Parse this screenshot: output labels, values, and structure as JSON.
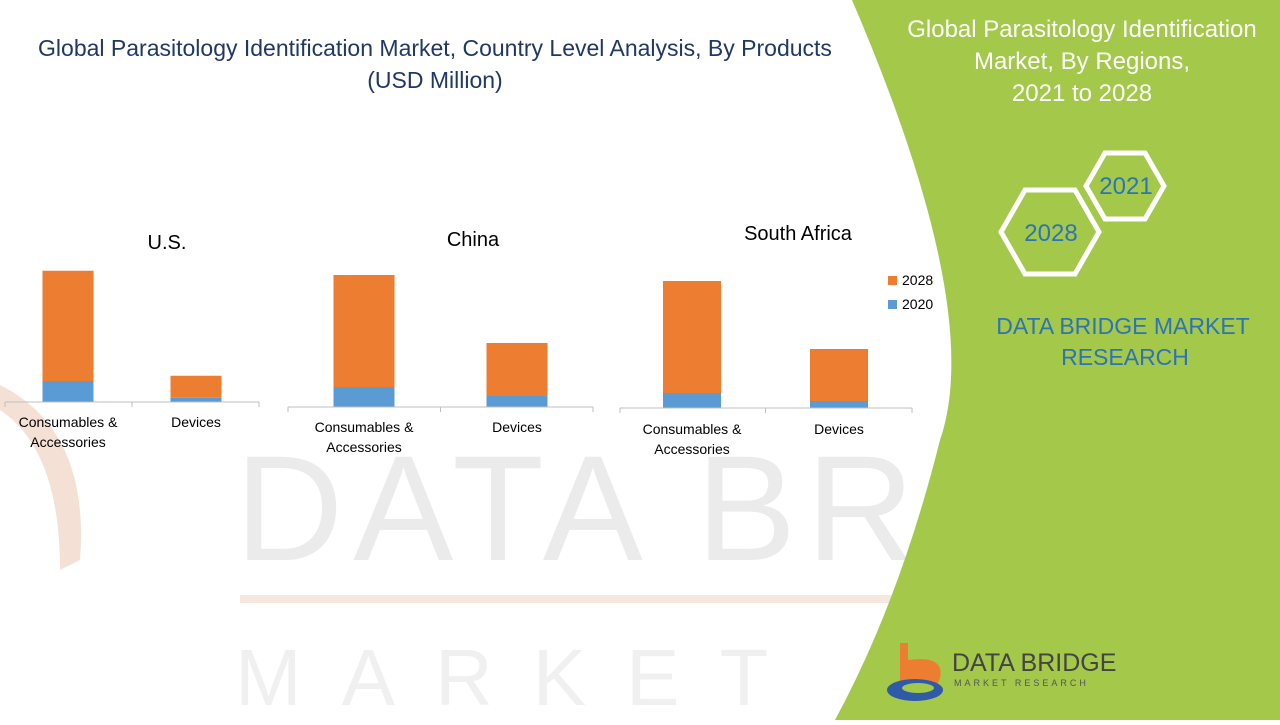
{
  "title": {
    "line1": "Global Parasitology Identification Market, Country Level Analysis, By Products",
    "line2": "(USD Million)"
  },
  "panel": {
    "title_line1": "Global Parasitology Identification",
    "title_line2": "Market, By Regions,",
    "title_line3": "2021 to 2028",
    "hex_top": "2021",
    "hex_bottom": "2028",
    "brand_line1": "DATA BRIDGE MARKET",
    "brand_line2": "RESEARCH",
    "green": "#a3c84a"
  },
  "logo": {
    "name": "DATA BRIDGE",
    "tagline": "MARKET RESEARCH",
    "icon": "data-bridge-logo-icon"
  },
  "watermark": {
    "text": "DATA BRIDGE",
    "sub": "MARKET RESEARCH"
  },
  "legend": {
    "items": [
      {
        "label": "2028",
        "color": "#ed7d31"
      },
      {
        "label": "2020",
        "color": "#5b9bd5"
      }
    ]
  },
  "chart_data": [
    {
      "type": "bar",
      "stacked": true,
      "title": "U.S.",
      "categories": [
        "Consumables &\nAccessories",
        "Devices"
      ],
      "series": [
        {
          "name": "2020",
          "values": [
            20,
            4
          ],
          "color": "#5b9bd5"
        },
        {
          "name": "2028",
          "values": [
            105,
            21
          ],
          "color": "#ed7d31"
        }
      ],
      "grid": false
    },
    {
      "type": "bar",
      "stacked": true,
      "title": "China",
      "categories": [
        "Consumables &\nAccessories",
        "Devices"
      ],
      "series": [
        {
          "name": "2020",
          "values": [
            20,
            11
          ],
          "color": "#5b9bd5"
        },
        {
          "name": "2028",
          "values": [
            112,
            53
          ],
          "color": "#ed7d31"
        }
      ],
      "grid": false
    },
    {
      "type": "bar",
      "stacked": true,
      "title": "South Africa",
      "categories": [
        "Consumables &\nAccessories",
        "Devices"
      ],
      "series": [
        {
          "name": "2020",
          "values": [
            15,
            7
          ],
          "color": "#5b9bd5"
        },
        {
          "name": "2028",
          "values": [
            112,
            52
          ],
          "color": "#ed7d31"
        }
      ],
      "grid": false,
      "legend": "right"
    }
  ]
}
